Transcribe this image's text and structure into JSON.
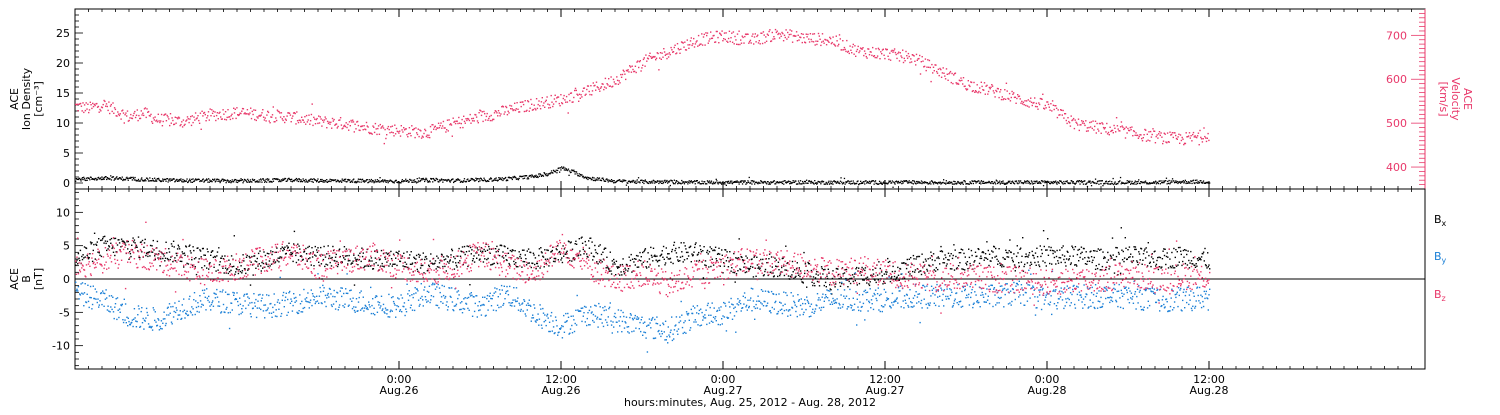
{
  "x_axis": {
    "title": "hours:minutes, Aug. 25, 2012 - Aug. 28, 2012",
    "start_hours": 0,
    "end_hours": 100,
    "major_ticks": [
      {
        "hours": 24,
        "time_label": "0:00",
        "date_label": "Aug.26"
      },
      {
        "hours": 36,
        "time_label": "12:00",
        "date_label": "Aug.26"
      },
      {
        "hours": 48,
        "time_label": "0:00",
        "date_label": "Aug.27"
      },
      {
        "hours": 60,
        "time_label": "12:00",
        "date_label": "Aug.27"
      },
      {
        "hours": 72,
        "time_label": "0:00",
        "date_label": "Aug.28"
      },
      {
        "hours": 84,
        "time_label": "12:00",
        "date_label": "Aug.28"
      }
    ],
    "minor_tick_hours": 1,
    "data_end_hours": 84.5
  },
  "colors": {
    "black": "#000000",
    "pink": "#e8386a",
    "blue": "#1a7fd6",
    "frame": "#000000"
  },
  "chart_data": [
    {
      "type": "scatter",
      "panel": "top",
      "ylabel": "ACE\nIon Density\n[cm⁻³]",
      "ylim": [
        -1,
        29
      ],
      "yticks": [
        0,
        5,
        10,
        15,
        20,
        25
      ],
      "y2label": "ACE\nVelocity\n[km/s]",
      "y2lim": [
        350,
        760
      ],
      "y2ticks": [
        400,
        500,
        600,
        700
      ],
      "series": [
        {
          "axis": "left",
          "color": "black",
          "x": [
            0,
            2,
            4,
            6,
            8,
            10,
            12,
            14,
            16,
            18,
            20,
            22,
            24,
            26,
            28,
            30,
            32,
            34,
            35,
            36,
            37,
            38,
            40,
            42,
            44,
            46,
            48,
            50,
            52,
            54,
            56,
            58,
            60,
            62,
            64,
            66,
            68,
            70,
            72,
            74,
            76,
            78,
            80,
            82,
            84
          ],
          "y": [
            0.7,
            0.9,
            0.8,
            0.6,
            0.5,
            0.5,
            0.4,
            0.5,
            0.6,
            0.5,
            0.5,
            0.4,
            0.4,
            0.6,
            0.5,
            0.6,
            0.8,
            1.2,
            1.6,
            2.6,
            1.8,
            0.9,
            0.4,
            0.3,
            0.3,
            0.2,
            0.2,
            0.2,
            0.2,
            0.2,
            0.2,
            0.2,
            0.2,
            0.2,
            0.2,
            0.2,
            0.2,
            0.2,
            0.2,
            0.2,
            0.2,
            0.2,
            0.2,
            0.3,
            0.3
          ]
        },
        {
          "axis": "right",
          "color": "pink",
          "x": [
            0,
            1,
            2,
            3,
            4,
            5,
            6,
            8,
            10,
            12,
            14,
            16,
            18,
            20,
            22,
            24,
            26,
            28,
            30,
            32,
            34,
            36,
            38,
            40,
            42,
            44,
            46,
            48,
            50,
            52,
            54,
            56,
            58,
            60,
            62,
            64,
            66,
            68,
            70,
            72,
            74,
            76,
            78,
            80,
            82,
            84
          ],
          "y": [
            540,
            535,
            545,
            530,
            515,
            525,
            510,
            505,
            520,
            525,
            520,
            515,
            505,
            500,
            490,
            485,
            480,
            500,
            515,
            530,
            545,
            555,
            575,
            600,
            640,
            665,
            690,
            700,
            690,
            705,
            695,
            690,
            665,
            660,
            650,
            620,
            590,
            575,
            555,
            540,
            500,
            490,
            480,
            470,
            465,
            475
          ]
        }
      ]
    },
    {
      "type": "scatter",
      "panel": "bottom",
      "ylabel": "ACE\nB\n[nT]",
      "ylim": [
        -13.5,
        13.5
      ],
      "yticks": [
        -10,
        -5,
        0,
        5,
        10
      ],
      "zero_line": true,
      "legend": [
        {
          "label": "B",
          "sub": "x",
          "color": "black"
        },
        {
          "label": "B",
          "sub": "y",
          "color": "blue"
        },
        {
          "label": "B",
          "sub": "z",
          "color": "pink"
        }
      ],
      "series": [
        {
          "name": "Bx",
          "color": "black",
          "x": [
            0,
            2,
            4,
            6,
            8,
            10,
            12,
            14,
            16,
            18,
            20,
            22,
            24,
            26,
            28,
            30,
            32,
            34,
            36,
            38,
            40,
            42,
            44,
            46,
            48,
            50,
            52,
            54,
            56,
            58,
            60,
            62,
            64,
            66,
            68,
            70,
            72,
            74,
            76,
            78,
            80,
            82,
            84
          ],
          "y": [
            3.0,
            5.0,
            5.0,
            4.5,
            4.0,
            3.0,
            2.0,
            3.0,
            4.0,
            3.5,
            3.5,
            3.0,
            3.0,
            2.5,
            3.0,
            4.0,
            3.5,
            3.0,
            4.0,
            5.0,
            2.0,
            3.0,
            4.0,
            4.0,
            3.0,
            2.0,
            2.0,
            1.0,
            0.0,
            0.5,
            1.0,
            2.0,
            3.0,
            3.0,
            3.5,
            3.5,
            3.5,
            3.5,
            3.0,
            3.5,
            3.0,
            3.5,
            3.0
          ]
        },
        {
          "name": "By",
          "color": "blue",
          "x": [
            0,
            2,
            4,
            6,
            8,
            10,
            12,
            14,
            16,
            18,
            20,
            22,
            24,
            26,
            28,
            30,
            32,
            34,
            36,
            38,
            40,
            42,
            44,
            46,
            48,
            50,
            52,
            54,
            56,
            58,
            60,
            62,
            64,
            66,
            68,
            70,
            72,
            74,
            76,
            78,
            80,
            82,
            84
          ],
          "y": [
            -2.0,
            -3.0,
            -5.5,
            -6.0,
            -4.0,
            -3.0,
            -3.5,
            -4.0,
            -3.5,
            -2.5,
            -3.0,
            -3.5,
            -4.0,
            -2.0,
            -3.0,
            -4.0,
            -2.0,
            -5.0,
            -7.0,
            -5.0,
            -6.0,
            -7.0,
            -7.5,
            -5.5,
            -5.0,
            -3.0,
            -3.5,
            -4.0,
            -3.0,
            -3.0,
            -3.0,
            -2.5,
            -2.5,
            -2.5,
            -2.5,
            -2.0,
            -3.0,
            -2.5,
            -2.5,
            -2.5,
            -3.0,
            -3.0,
            -2.5
          ]
        },
        {
          "name": "Bz",
          "color": "pink",
          "x": [
            0,
            2,
            4,
            6,
            8,
            10,
            12,
            14,
            16,
            18,
            20,
            22,
            24,
            26,
            28,
            30,
            32,
            34,
            36,
            38,
            40,
            42,
            44,
            46,
            48,
            50,
            52,
            54,
            56,
            58,
            60,
            62,
            64,
            66,
            68,
            70,
            72,
            74,
            76,
            78,
            80,
            82,
            84
          ],
          "y": [
            2.0,
            3.0,
            4.0,
            3.0,
            2.0,
            1.0,
            2.0,
            3.0,
            4.0,
            2.0,
            3.0,
            3.5,
            2.0,
            1.0,
            2.0,
            4.0,
            2.0,
            1.0,
            5.0,
            2.0,
            0.0,
            1.0,
            -1.0,
            1.0,
            2.0,
            3.0,
            2.5,
            2.0,
            1.0,
            1.5,
            1.0,
            0.5,
            0.0,
            0.5,
            0.0,
            0.0,
            -0.5,
            0.0,
            0.0,
            1.0,
            0.0,
            0.5,
            0.5
          ]
        }
      ]
    }
  ]
}
